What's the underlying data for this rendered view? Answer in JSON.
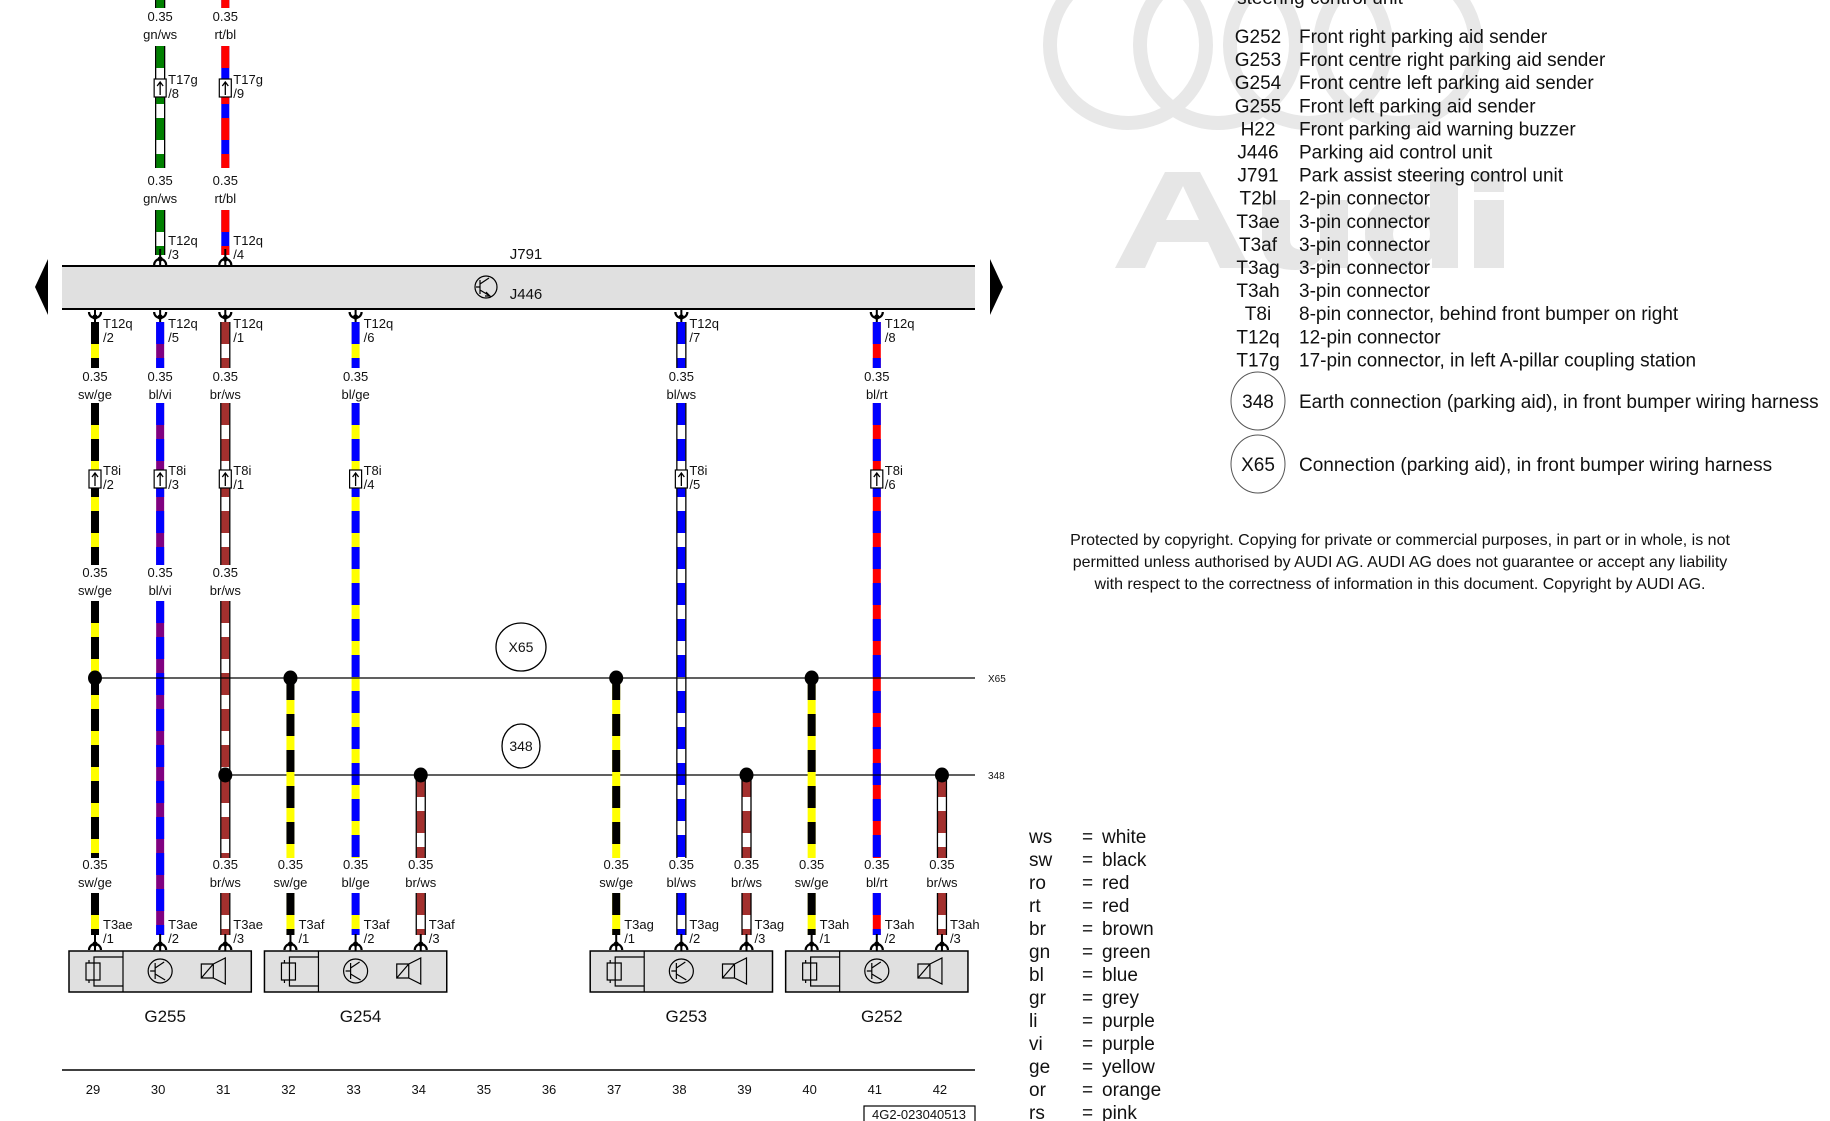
{
  "diagram": {
    "control_unit": {
      "outer": "J791",
      "inner": "J446"
    },
    "columns": [
      "29",
      "30",
      "31",
      "32",
      "33",
      "34",
      "35",
      "36",
      "37",
      "38",
      "39",
      "40",
      "41",
      "42"
    ],
    "reference": "4G2-023040513",
    "wire_colors": {
      "ws": "#ffffff",
      "sw": "#000000",
      "ge": "#ffff00",
      "bl": "#0000ff",
      "rt": "#ff0000",
      "br": "#a3302e",
      "vi": "#800080",
      "gn": "#008000"
    },
    "top_wires": [
      {
        "col": 30,
        "size": "0.35",
        "color": "gn/ws",
        "t17g_pin": "/8",
        "t12q_pin": "/3"
      },
      {
        "col": 31,
        "size": "0.35",
        "color": "rt/bl",
        "t17g_pin": "/9",
        "t12q_pin": "/4"
      }
    ],
    "connectors": {
      "t17g": "T17g",
      "t12q": "T12q",
      "t8i": "T8i"
    },
    "main_wires": [
      {
        "col": 29,
        "size": "0.35",
        "color": "sw/ge",
        "t12q_pin": "/2",
        "t8i_pin": "/2",
        "mid_label": true,
        "bottom_label": true
      },
      {
        "col": 30,
        "size": "0.35",
        "color": "bl/vi",
        "t12q_pin": "/5",
        "t8i_pin": "/3",
        "mid_label": true,
        "bottom_label": false
      },
      {
        "col": 31,
        "size": "0.35",
        "color": "br/ws",
        "t12q_pin": "/1",
        "t8i_pin": "/1",
        "mid_label": true,
        "bottom_label": true
      },
      {
        "col": 33,
        "size": "0.35",
        "color": "bl/ge",
        "t12q_pin": "/6",
        "t8i_pin": "/4",
        "mid_label": false,
        "bottom_label": true
      },
      {
        "col": 38,
        "size": "0.35",
        "color": "bl/ws",
        "t12q_pin": "/7",
        "t8i_pin": "/5",
        "mid_label": false,
        "bottom_label": true
      },
      {
        "col": 41,
        "size": "0.35",
        "color": "bl/rt",
        "t12q_pin": "/8",
        "t8i_pin": "/6",
        "mid_label": false,
        "bottom_label": true
      }
    ],
    "splices": [
      {
        "id": "X65",
        "label": "X65",
        "cols": [
          29,
          32,
          37,
          40
        ]
      },
      {
        "id": "348",
        "label": "348",
        "cols": [
          31,
          34,
          39,
          42
        ]
      }
    ],
    "branch_wires": [
      {
        "col": 32,
        "size": "0.35",
        "color": "sw/ge",
        "from": "X65"
      },
      {
        "col": 34,
        "size": "0.35",
        "color": "br/ws",
        "from": "348"
      },
      {
        "col": 37,
        "size": "0.35",
        "color": "sw/ge",
        "from": "X65"
      },
      {
        "col": 39,
        "size": "0.35",
        "color": "br/ws",
        "from": "348"
      },
      {
        "col": 40,
        "size": "0.35",
        "color": "sw/ge",
        "from": "X65"
      },
      {
        "col": 42,
        "size": "0.35",
        "color": "br/ws",
        "from": "348"
      }
    ],
    "senders": [
      {
        "name": "G255",
        "connector": "T3ae",
        "cols": [
          29,
          30,
          31
        ],
        "pins": [
          "/1",
          "/2",
          "/3"
        ]
      },
      {
        "name": "G254",
        "connector": "T3af",
        "cols": [
          32,
          33,
          34
        ],
        "pins": [
          "/1",
          "/2",
          "/3"
        ]
      },
      {
        "name": "G253",
        "connector": "T3ag",
        "cols": [
          37,
          38,
          39
        ],
        "pins": [
          "/1",
          "/2",
          "/3"
        ]
      },
      {
        "name": "G252",
        "connector": "T3ah",
        "cols": [
          40,
          41,
          42
        ],
        "pins": [
          "/1",
          "/2",
          "/3"
        ]
      }
    ]
  },
  "legend": {
    "heading_clipped": "steering control unit",
    "components": [
      {
        "code": "G252",
        "desc": "Front right parking aid sender"
      },
      {
        "code": "G253",
        "desc": "Front centre right parking aid sender"
      },
      {
        "code": "G254",
        "desc": "Front centre left parking aid sender"
      },
      {
        "code": "G255",
        "desc": "Front left parking aid sender"
      },
      {
        "code": "H22",
        "desc": "Front parking aid warning buzzer"
      },
      {
        "code": "J446",
        "desc": "Parking aid control unit"
      },
      {
        "code": "J791",
        "desc": "Park assist steering control unit"
      },
      {
        "code": "T2bl",
        "desc": "2-pin connector"
      },
      {
        "code": "T3ae",
        "desc": "3-pin connector"
      },
      {
        "code": "T3af",
        "desc": "3-pin connector"
      },
      {
        "code": "T3ag",
        "desc": "3-pin connector"
      },
      {
        "code": "T3ah",
        "desc": "3-pin connector"
      },
      {
        "code": "T8i",
        "desc": "8-pin connector, behind front bumper on right"
      },
      {
        "code": "T12q",
        "desc": "12-pin connector"
      },
      {
        "code": "T17g",
        "desc": "17-pin connector, in left A-pillar coupling station"
      }
    ],
    "circled": [
      {
        "code": "348",
        "desc": "Earth connection (parking aid), in front bumper wiring harness"
      },
      {
        "code": "X65",
        "desc": "Connection (parking aid), in front bumper wiring harness"
      }
    ],
    "colors": [
      {
        "code": "ws",
        "eq": "=",
        "name": "white"
      },
      {
        "code": "sw",
        "eq": "=",
        "name": "black"
      },
      {
        "code": "ro",
        "eq": "=",
        "name": "red"
      },
      {
        "code": "rt",
        "eq": "=",
        "name": "red"
      },
      {
        "code": "br",
        "eq": "=",
        "name": "brown"
      },
      {
        "code": "gn",
        "eq": "=",
        "name": "green"
      },
      {
        "code": "bl",
        "eq": "=",
        "name": "blue"
      },
      {
        "code": "gr",
        "eq": "=",
        "name": "grey"
      },
      {
        "code": "li",
        "eq": "=",
        "name": "purple"
      },
      {
        "code": "vi",
        "eq": "=",
        "name": "purple"
      },
      {
        "code": "ge",
        "eq": "=",
        "name": "yellow"
      },
      {
        "code": "or",
        "eq": "=",
        "name": "orange"
      },
      {
        "code": "rs",
        "eq": "=",
        "name": "pink"
      }
    ]
  },
  "watermark": {
    "logo_text": "Audi",
    "copyright": [
      "Protected by copyright. Copying for private or commercial purposes, in part or in whole, is not",
      "permitted unless authorised by AUDI AG. AUDI AG does not guarantee or accept any liability",
      "with respect to the correctness of information in this document. Copyright by AUDI AG."
    ]
  }
}
